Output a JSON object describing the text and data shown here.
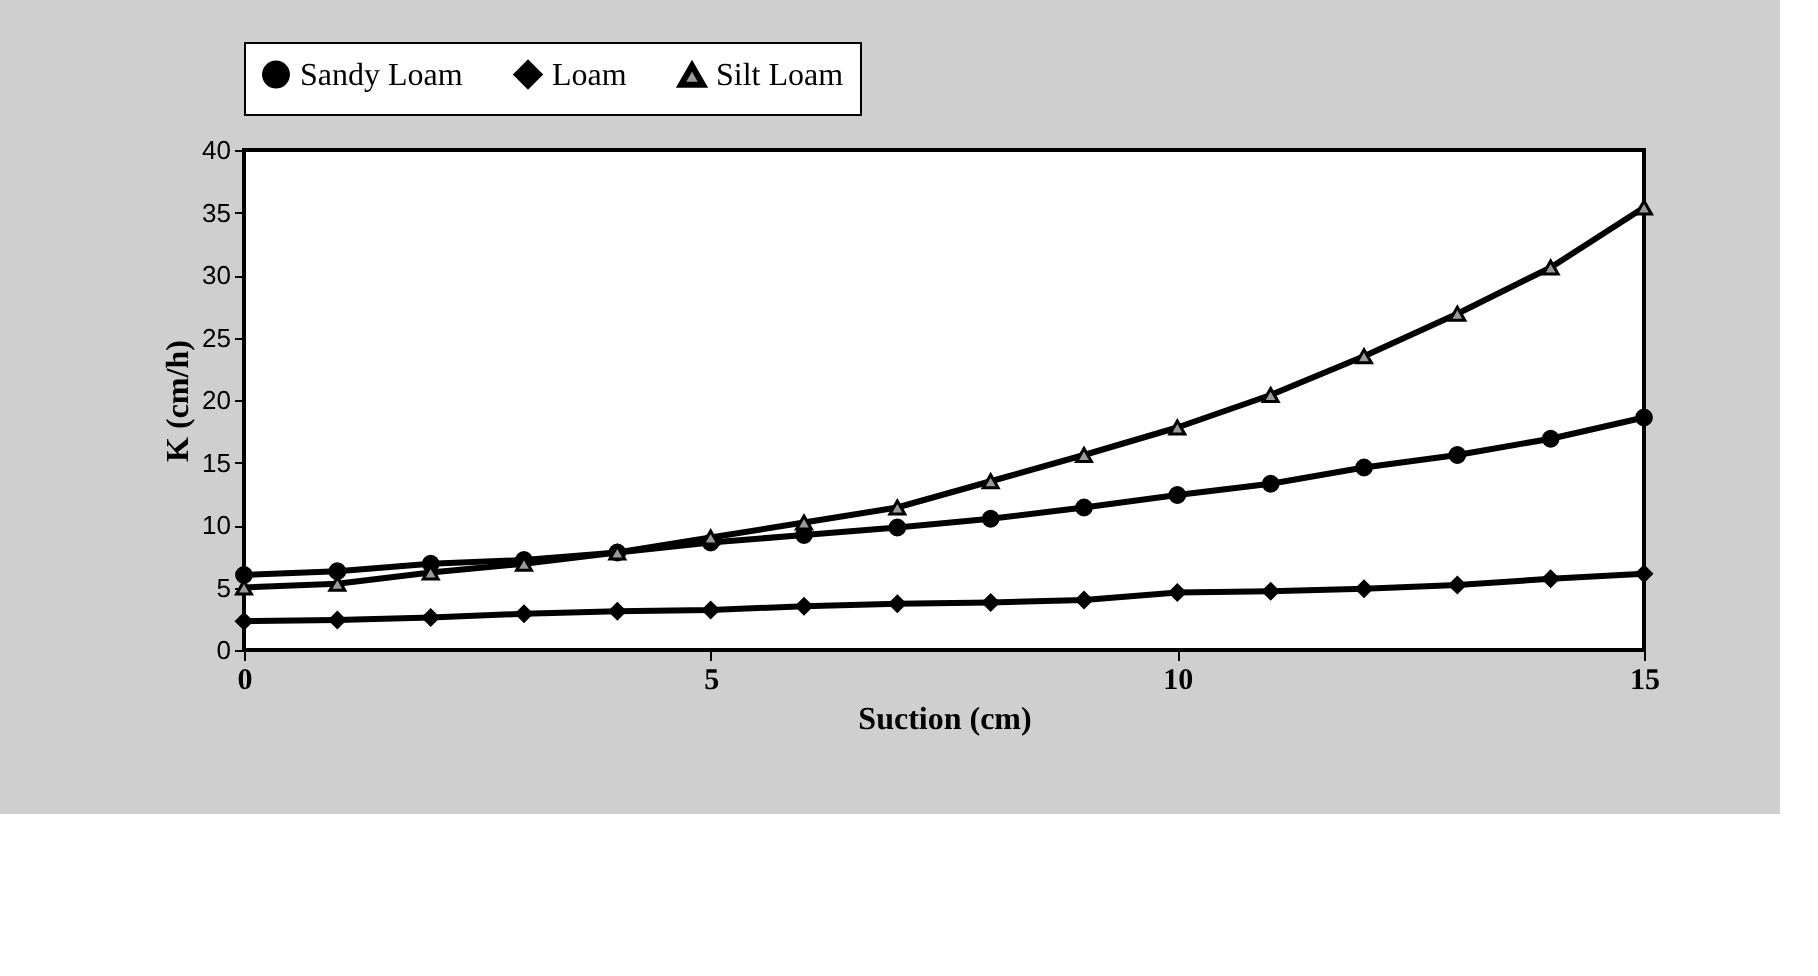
{
  "chart_data": {
    "type": "line",
    "xlabel": "Suction (cm)",
    "ylabel": "K (cm/h)",
    "x": [
      0,
      1,
      2,
      3,
      4,
      5,
      6,
      7,
      8,
      9,
      10,
      11,
      12,
      13,
      14,
      15
    ],
    "series": [
      {
        "name": "Sandy Loam",
        "color": "#000000",
        "marker": "circle",
        "values": [
          6.0,
          6.3,
          6.9,
          7.2,
          7.8,
          8.6,
          9.2,
          9.8,
          10.5,
          11.4,
          12.4,
          13.3,
          14.6,
          15.6,
          16.9,
          18.6
        ]
      },
      {
        "name": "Loam",
        "color": "#000000",
        "marker": "diamond",
        "values": [
          2.3,
          2.4,
          2.6,
          2.9,
          3.1,
          3.2,
          3.5,
          3.7,
          3.8,
          4.0,
          4.6,
          4.7,
          4.9,
          5.2,
          5.7,
          6.1
        ]
      },
      {
        "name": "Silt Loam",
        "color": "#000000",
        "marker": "triangle",
        "values": [
          5.0,
          5.3,
          6.2,
          6.9,
          7.8,
          9.0,
          10.2,
          11.4,
          13.5,
          15.6,
          17.8,
          20.4,
          23.5,
          26.9,
          30.6,
          35.4
        ]
      }
    ],
    "xlim": [
      0,
      15
    ],
    "xticks": [
      0,
      5,
      10,
      15
    ],
    "ylim": [
      0,
      40
    ],
    "yticks": [
      0,
      5,
      10,
      15,
      20,
      25,
      30,
      35,
      40
    ],
    "grid": false,
    "legend": "top",
    "line_style": "solid"
  }
}
